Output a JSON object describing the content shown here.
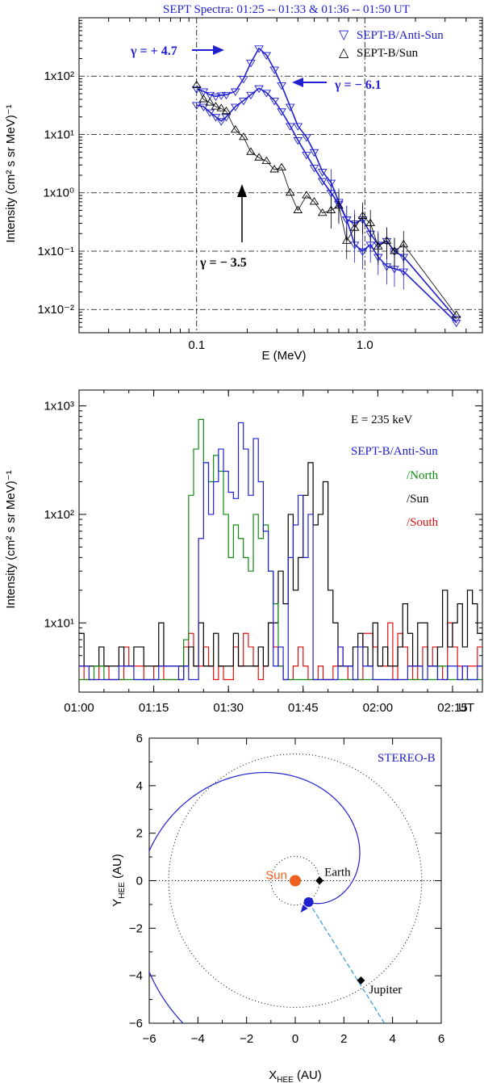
{
  "chart_data": [
    {
      "type": "line",
      "title": "SEPT Spectra: 01:25 -- 01:33 & 01:36 -- 01:50 UT",
      "xlabel": "E (MeV)",
      "ylabel": "Intensity (cm² s sr MeV)⁻¹",
      "xscale": "log",
      "yscale": "log",
      "xlim": [
        0.02,
        5.0
      ],
      "ylim": [
        0.004,
        1000
      ],
      "x_ticks": [
        {
          "v": 0.1,
          "label": "0.1"
        },
        {
          "v": 1.0,
          "label": "1.0"
        }
      ],
      "y_ticks": [
        {
          "v": 0.01,
          "label": "1x10⁻²"
        },
        {
          "v": 0.1,
          "label": "1x10⁻¹"
        },
        {
          "v": 1,
          "label": "1x10⁰"
        },
        {
          "v": 10,
          "label": "1x10¹"
        },
        {
          "v": 100,
          "label": "1x10²"
        }
      ],
      "legend": [
        {
          "symbol": "▽",
          "label": "SEPT-B/Anti-Sun",
          "color": "#2020d0"
        },
        {
          "symbol": "△",
          "label": "SEPT-B/Sun",
          "color": "#000000"
        }
      ],
      "annotations": [
        {
          "text": "γ = + 4.7",
          "color": "#2020d0"
        },
        {
          "text": "γ = − 6.1",
          "color": "#2020d0"
        },
        {
          "text": "γ = − 3.5",
          "color": "#000000"
        }
      ],
      "series": [
        {
          "name": "SEPT-B/Anti-Sun (01:25-01:33)",
          "color": "#2020d0",
          "marker": "down",
          "x": [
            0.1,
            0.11,
            0.12,
            0.13,
            0.14,
            0.15,
            0.17,
            0.19,
            0.21,
            0.235,
            0.26,
            0.29,
            0.32,
            0.36,
            0.4,
            0.45,
            0.5,
            0.56,
            0.63,
            0.7,
            0.78,
            0.87,
            0.97,
            1.08,
            1.2,
            1.35,
            1.5,
            1.7,
            3.5
          ],
          "y": [
            60,
            55,
            48,
            45,
            47,
            48,
            55,
            90,
            170,
            300,
            230,
            130,
            70,
            30,
            14,
            9,
            5,
            2.3,
            1.5,
            0.7,
            0.35,
            0.3,
            0.35,
            0.2,
            0.13,
            0.15,
            0.1,
            0.08,
            0.007
          ]
        },
        {
          "name": "SEPT-B/Anti-Sun (01:36-01:50)",
          "color": "#2020d0",
          "marker": "down",
          "x": [
            0.1,
            0.11,
            0.12,
            0.13,
            0.14,
            0.15,
            0.17,
            0.19,
            0.21,
            0.235,
            0.26,
            0.29,
            0.32,
            0.36,
            0.4,
            0.45,
            0.5,
            0.56,
            0.63,
            0.7,
            0.78,
            0.87,
            0.97,
            1.08,
            1.2,
            1.35,
            1.5,
            1.7,
            3.5
          ],
          "y": [
            32,
            30,
            24,
            20,
            17,
            20,
            30,
            38,
            48,
            62,
            52,
            38,
            25,
            14,
            8,
            4.5,
            2.7,
            1.6,
            1,
            0.65,
            0.35,
            0.13,
            0.1,
            0.13,
            0.08,
            0.055,
            0.05,
            0.045,
            0.006
          ]
        },
        {
          "name": "SEPT-B/Sun",
          "color": "#000000",
          "marker": "up",
          "x": [
            0.1,
            0.11,
            0.12,
            0.13,
            0.14,
            0.15,
            0.17,
            0.19,
            0.21,
            0.235,
            0.26,
            0.29,
            0.32,
            0.36,
            0.4,
            0.45,
            0.5,
            0.56,
            0.63,
            0.7,
            0.78,
            0.87,
            0.97,
            1.08,
            1.2,
            1.35,
            1.5,
            1.7,
            3.5
          ],
          "y": [
            70,
            40,
            35,
            30,
            28,
            25,
            12,
            9,
            5,
            4,
            3.5,
            2.5,
            2.7,
            1,
            0.5,
            0.9,
            0.7,
            0.45,
            0.5,
            0.6,
            0.15,
            0.25,
            0.4,
            0.3,
            0.12,
            0.15,
            0.1,
            0.13,
            0.008
          ]
        }
      ]
    },
    {
      "type": "line",
      "title": "",
      "xlabel": "UT",
      "ylabel": "Intensity (cm² s sr MeV)⁻¹",
      "yscale": "log",
      "ylim": [
        2.3,
        1400
      ],
      "x_ticks": [
        "01:00",
        "01:15",
        "01:30",
        "01:45",
        "02:00",
        "02:15",
        "UT"
      ],
      "y_ticks": [
        {
          "v": 10,
          "label": "1x10¹"
        },
        {
          "v": 100,
          "label": "1x10²"
        },
        {
          "v": 1000,
          "label": "1x10³"
        }
      ],
      "annotation": "E = 235 keV",
      "legend": [
        {
          "label": "SEPT-B/Anti-Sun",
          "color": "#2020d0"
        },
        {
          "label": "/North",
          "color": "#108a10"
        },
        {
          "label": "/Sun",
          "color": "#000000"
        },
        {
          "label": "/South",
          "color": "#e01010"
        }
      ],
      "time_start_min": 0,
      "bin_minutes": 1,
      "series": [
        {
          "name": "SEPT-B/Anti-Sun",
          "color": "#2020d0",
          "values": [
            4,
            4,
            3,
            3,
            3,
            3,
            3,
            3,
            4,
            4,
            4,
            3,
            3,
            3,
            3,
            3,
            4,
            4,
            4,
            4,
            3,
            4,
            3,
            3,
            60,
            300,
            100,
            200,
            400,
            250,
            160,
            140,
            700,
            400,
            150,
            500,
            200,
            70,
            30,
            4,
            6,
            3,
            40,
            80,
            150,
            40,
            100,
            3,
            3,
            3,
            3,
            3,
            6,
            4,
            4,
            3,
            6,
            4,
            4,
            3,
            3,
            3,
            3,
            3,
            3,
            3,
            4,
            4,
            4,
            3,
            4,
            4,
            3,
            3,
            4,
            4,
            3,
            4,
            3,
            3,
            4
          ]
        },
        {
          "name": "/North",
          "color": "#108a10",
          "values": [
            3,
            3,
            3,
            4,
            4,
            3,
            3,
            3,
            3,
            3,
            3,
            3,
            3,
            3,
            3,
            3,
            3,
            3,
            3,
            3,
            3,
            7,
            150,
            400,
            750,
            300,
            200,
            350,
            250,
            100,
            40,
            80,
            60,
            40,
            30,
            100,
            60,
            80,
            30,
            15,
            4,
            3,
            3,
            3,
            3,
            3,
            3,
            3,
            3,
            3,
            3,
            3,
            3,
            3,
            3,
            3,
            3,
            3,
            3,
            3,
            3,
            3,
            3,
            3,
            3,
            3,
            3,
            3,
            3,
            3,
            3,
            3,
            4,
            4,
            3,
            3,
            3,
            3,
            3,
            3,
            3
          ]
        },
        {
          "name": "/Sun",
          "color": "#000000",
          "values": [
            8,
            4,
            4,
            4,
            6,
            4,
            4,
            4,
            6,
            4,
            4,
            6,
            6,
            4,
            4,
            4,
            10,
            4,
            4,
            4,
            4,
            4,
            6,
            4,
            10,
            4,
            4,
            8,
            4,
            4,
            4,
            8,
            4,
            4,
            4,
            4,
            6,
            4,
            10,
            10,
            30,
            15,
            100,
            20,
            40,
            150,
            300,
            80,
            100,
            200,
            20,
            10,
            4,
            4,
            4,
            6,
            8,
            6,
            4,
            10,
            4,
            6,
            4,
            4,
            6,
            15,
            8,
            4,
            10,
            10,
            4,
            4,
            6,
            20,
            6,
            10,
            15,
            6,
            20,
            15,
            8
          ]
        },
        {
          "name": "/South",
          "color": "#e01010",
          "values": [
            4,
            3,
            3,
            3,
            4,
            4,
            3,
            3,
            3,
            6,
            4,
            4,
            4,
            3,
            3,
            4,
            4,
            3,
            3,
            3,
            3,
            6,
            8,
            4,
            4,
            6,
            4,
            3,
            4,
            3,
            3,
            6,
            4,
            8,
            6,
            4,
            3,
            4,
            10,
            6,
            4,
            3,
            3,
            4,
            6,
            4,
            3,
            3,
            4,
            3,
            3,
            4,
            6,
            4,
            3,
            3,
            3,
            8,
            8,
            6,
            4,
            4,
            10,
            3,
            8,
            6,
            4,
            3,
            4,
            6,
            4,
            6,
            4,
            3,
            10,
            6,
            4,
            3,
            4,
            4,
            6
          ]
        }
      ]
    },
    {
      "type": "scatter",
      "title": "STEREO-B",
      "xlabel": "X_HEE (AU)",
      "ylabel": "Y_HEE (AU)",
      "xlim": [
        -6,
        6
      ],
      "ylim": [
        -6,
        6
      ],
      "x_ticks": [
        -6,
        -4,
        -2,
        0,
        2,
        4,
        6
      ],
      "y_ticks": [
        -6,
        -4,
        -2,
        0,
        2,
        4,
        6
      ],
      "points": [
        {
          "name": "Sun",
          "x": 0,
          "y": 0,
          "color": "#f06020"
        },
        {
          "name": "Earth",
          "x": 1.0,
          "y": 0.0,
          "color": "#000000"
        },
        {
          "name": "Jupiter",
          "x": 2.7,
          "y": -4.2,
          "color": "#000000"
        },
        {
          "name": "STEREO-B",
          "x": 0.55,
          "y": -0.9,
          "color": "#2020d0"
        }
      ],
      "orbits_au": [
        1.0,
        5.2
      ],
      "colors": {
        "spiral": "#2020d0",
        "line": "#3399dd",
        "sun": "#f06020"
      }
    }
  ]
}
